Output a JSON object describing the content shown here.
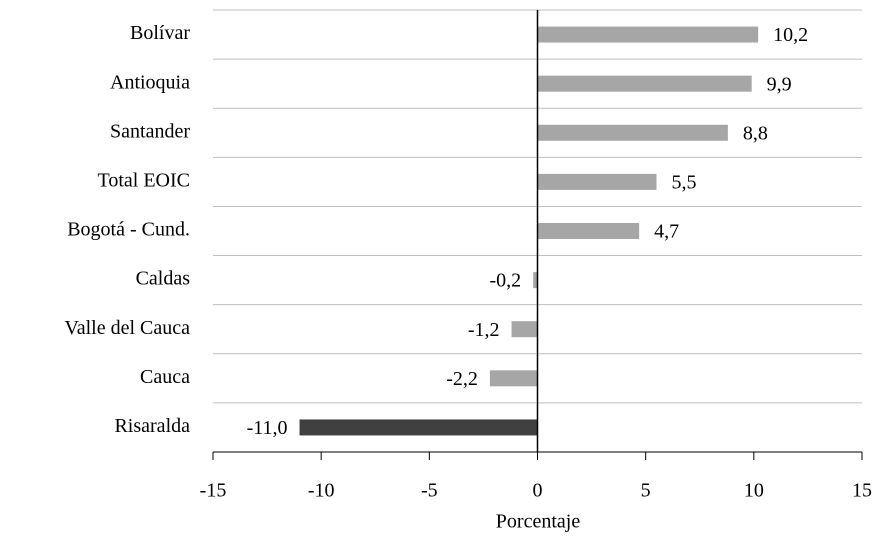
{
  "chart_data": {
    "type": "barh",
    "categories": [
      "Bolívar",
      "Antioquia",
      "Santander",
      "Total EOIC",
      "Bogotá - Cund.",
      "Caldas",
      "Valle del Cauca",
      "Cauca",
      "Risaralda"
    ],
    "values": [
      10.2,
      9.9,
      8.8,
      5.5,
      4.7,
      -0.2,
      -1.2,
      -2.2,
      -11.0
    ],
    "value_labels": [
      "10,2",
      "9,9",
      "8,8",
      "5,5",
      "4,7",
      "-0,2",
      "-1,2",
      "-2,2",
      "-11,0"
    ],
    "colors": [
      "#a6a6a6",
      "#a6a6a6",
      "#a6a6a6",
      "#a6a6a6",
      "#a6a6a6",
      "#a6a6a6",
      "#a6a6a6",
      "#a6a6a6",
      "#404040"
    ],
    "xlabel": "Porcentaje",
    "xlim": [
      -15,
      15
    ],
    "xticks": [
      -15,
      -10,
      -5,
      0,
      5,
      10,
      15
    ],
    "grid": true
  }
}
